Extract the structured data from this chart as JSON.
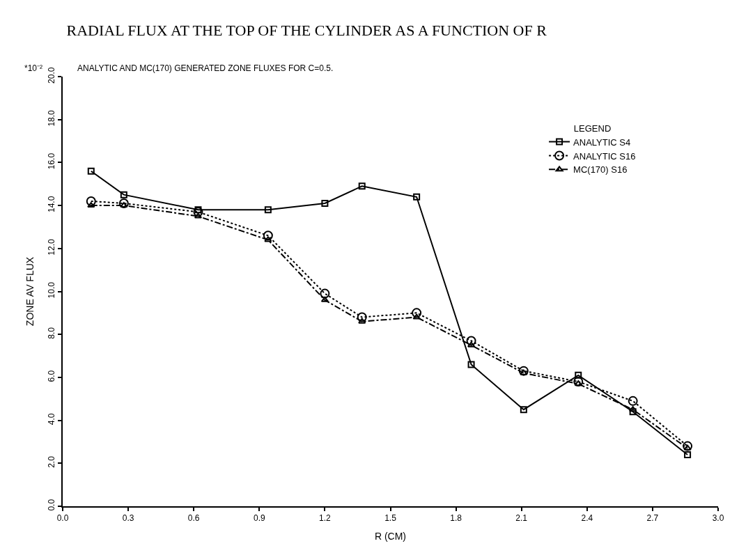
{
  "chart_data": {
    "type": "line",
    "title": "RADIAL FLUX AT THE TOP OF THE CYLINDER AS A FUNCTION OF R",
    "subtitle": "ANALYTIC AND MC(170) GENERATED ZONE FLUXES FOR C=0.5.",
    "xlabel": "R (CM)",
    "ylabel": "ZONE AV FLUX",
    "annotations": [
      "*10⁻²"
    ],
    "legend_title": "LEGEND",
    "x": [
      0.13,
      0.28,
      0.62,
      0.94,
      1.2,
      1.37,
      1.62,
      1.87,
      2.11,
      2.36,
      2.61,
      2.86
    ],
    "series": [
      {
        "name": "ANALYTIC S4",
        "color": "#000000",
        "marker": "square",
        "line_style": "solid",
        "values": [
          15.6,
          14.5,
          13.8,
          13.8,
          14.1,
          14.9,
          14.4,
          6.6,
          4.5,
          6.1,
          4.4,
          2.4
        ]
      },
      {
        "name": "ANALYTIC S16",
        "color": "#000000",
        "marker": "circle",
        "line_style": "dotted",
        "values": [
          14.2,
          14.1,
          13.7,
          12.6,
          9.9,
          8.8,
          9.0,
          7.7,
          6.3,
          5.8,
          4.9,
          2.8
        ]
      },
      {
        "name": "MC(170) S16",
        "color": "#000000",
        "marker": "triangle",
        "line_style": "dashdot",
        "values": [
          14.0,
          14.0,
          13.5,
          12.4,
          9.6,
          8.6,
          8.8,
          7.5,
          6.2,
          5.7,
          4.5,
          2.7
        ]
      }
    ],
    "xlim": [
      0.0,
      3.0
    ],
    "xticks": [
      {
        "value": 0.0,
        "label": "0.0"
      },
      0.3,
      0.6,
      0.9,
      1.2,
      1.5,
      1.8,
      2.1,
      2.4,
      2.7,
      {
        "value": 3.0,
        "label": "3.0"
      }
    ],
    "ylim": [
      0.0,
      20.0
    ],
    "yticks": [
      {
        "value": 0,
        "label": "0.0"
      },
      {
        "value": 2,
        "label": "2.0"
      },
      {
        "value": 4,
        "label": "4.0"
      },
      {
        "value": 6,
        "label": "6.0"
      },
      {
        "value": 8,
        "label": "8.0"
      },
      {
        "value": 10,
        "label": "10.0"
      },
      {
        "value": 12,
        "label": "12.0"
      },
      {
        "value": 14,
        "label": "14.0"
      },
      {
        "value": 16,
        "label": "16.0"
      },
      {
        "value": 18,
        "label": "18.0"
      },
      {
        "value": 20,
        "label": "20.0"
      }
    ],
    "legend": "top right"
  }
}
